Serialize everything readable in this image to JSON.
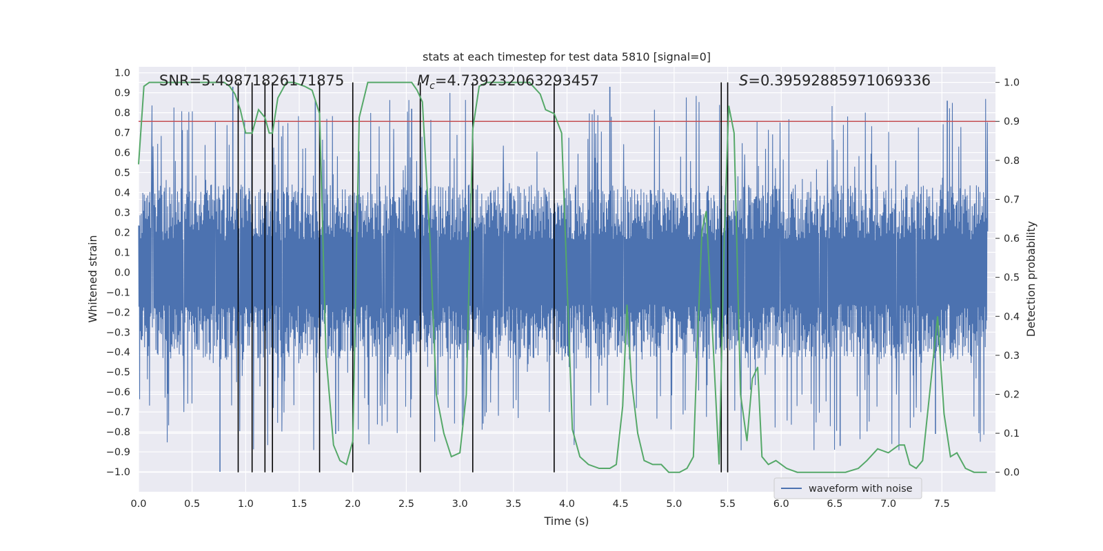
{
  "chart_data": {
    "type": "line",
    "title": "stats at each timestep for test data 5810 [signal=0]",
    "xlabel": "Time (s)",
    "ylabel": "Whitened strain",
    "ylabel_right": "Detection probability",
    "xlim": [
      0.0,
      8.0
    ],
    "ylim": [
      -1.1,
      1.03
    ],
    "ylim_right": [
      -0.05,
      1.04
    ],
    "x_ticks": [
      "0.0",
      "0.5",
      "1.0",
      "1.5",
      "2.0",
      "2.5",
      "3.0",
      "3.5",
      "4.0",
      "4.5",
      "5.0",
      "5.5",
      "6.0",
      "6.5",
      "7.0",
      "7.5"
    ],
    "y_ticks": [
      "−1.0",
      "−0.9",
      "−0.8",
      "−0.7",
      "−0.6",
      "−0.5",
      "−0.4",
      "−0.3",
      "−0.2",
      "−0.1",
      "0.0",
      "0.1",
      "0.2",
      "0.3",
      "0.4",
      "0.5",
      "0.6",
      "0.7",
      "0.8",
      "0.9",
      "1.0"
    ],
    "y_ticks_right": [
      "0.0",
      "0.1",
      "0.2",
      "0.3",
      "0.4",
      "0.5",
      "0.6",
      "0.7",
      "0.8",
      "0.9",
      "1.0"
    ],
    "annotations": {
      "snr": "SNR=5.49871826171875",
      "mc_symbol": "M",
      "mc_sub": "c",
      "mc_value": "=4.739232063293457",
      "s_symbol": "S",
      "s_value": "=0.39592885971069336"
    },
    "legend": [
      "waveform with noise"
    ],
    "threshold": {
      "value": 0.9,
      "axis": "right",
      "color": "#c44e52"
    },
    "vertical_lines": [
      0.93,
      1.06,
      1.18,
      1.25,
      1.69,
      2.0,
      2.63,
      3.12,
      3.88,
      5.44,
      5.5
    ],
    "series": [
      {
        "name": "waveform with noise",
        "color": "#4c72b0",
        "axis": "left",
        "kind": "noisy strain (approx. envelope ±0.4 body, peaks to ±1.0)",
        "peaks": [
          {
            "x": 0.76,
            "y": -1.0
          },
          {
            "x": 0.88,
            "y": 0.93
          },
          {
            "x": 1.84,
            "y": -0.81
          },
          {
            "x": 4.4,
            "y": 0.93
          },
          {
            "x": 6.55,
            "y": -0.87
          },
          {
            "x": 7.55,
            "y": 0.86
          },
          {
            "x": 7.44,
            "y": -0.81
          },
          {
            "x": 1.65,
            "y": 0.86
          },
          {
            "x": 2.55,
            "y": 0.82
          }
        ]
      },
      {
        "name": "detection probability",
        "color": "#55a868",
        "axis": "right",
        "x": [
          0.0,
          0.05,
          0.1,
          0.2,
          0.3,
          0.4,
          0.5,
          0.6,
          0.7,
          0.8,
          0.85,
          0.9,
          0.95,
          1.0,
          1.06,
          1.12,
          1.18,
          1.22,
          1.25,
          1.3,
          1.38,
          1.45,
          1.55,
          1.62,
          1.69,
          1.75,
          1.82,
          1.88,
          1.94,
          2.0,
          2.06,
          2.14,
          2.25,
          2.35,
          2.45,
          2.55,
          2.6,
          2.65,
          2.72,
          2.78,
          2.85,
          2.92,
          3.0,
          3.06,
          3.12,
          3.18,
          3.25,
          3.35,
          3.45,
          3.55,
          3.65,
          3.75,
          3.8,
          3.88,
          3.95,
          4.05,
          4.12,
          4.2,
          4.3,
          4.4,
          4.46,
          4.52,
          4.56,
          4.6,
          4.66,
          4.72,
          4.8,
          4.88,
          4.95,
          5.05,
          5.12,
          5.18,
          5.22,
          5.26,
          5.3,
          5.36,
          5.42,
          5.47,
          5.51,
          5.56,
          5.62,
          5.68,
          5.73,
          5.78,
          5.82,
          5.88,
          5.95,
          6.05,
          6.15,
          6.22,
          6.3,
          6.45,
          6.6,
          6.72,
          6.8,
          6.9,
          7.0,
          7.05,
          7.1,
          7.15,
          7.2,
          7.26,
          7.32,
          7.4,
          7.46,
          7.52,
          7.58,
          7.64,
          7.72,
          7.8,
          7.92
        ],
        "values": [
          0.79,
          0.99,
          1.0,
          1.0,
          1.0,
          1.0,
          1.0,
          1.0,
          1.0,
          1.0,
          0.99,
          0.97,
          0.93,
          0.87,
          0.87,
          0.93,
          0.91,
          0.87,
          0.87,
          0.96,
          1.0,
          1.0,
          0.99,
          0.98,
          0.92,
          0.3,
          0.07,
          0.03,
          0.02,
          0.08,
          0.91,
          1.0,
          1.0,
          1.0,
          1.0,
          1.0,
          0.98,
          0.95,
          0.6,
          0.2,
          0.1,
          0.04,
          0.05,
          0.2,
          0.88,
          0.99,
          1.0,
          1.0,
          1.0,
          1.0,
          1.0,
          0.97,
          0.93,
          0.92,
          0.87,
          0.11,
          0.04,
          0.02,
          0.01,
          0.01,
          0.02,
          0.17,
          0.43,
          0.24,
          0.1,
          0.03,
          0.02,
          0.02,
          0.0,
          0.0,
          0.01,
          0.04,
          0.35,
          0.62,
          0.67,
          0.35,
          0.02,
          0.62,
          0.94,
          0.87,
          0.2,
          0.08,
          0.24,
          0.27,
          0.04,
          0.02,
          0.03,
          0.01,
          0.0,
          0.0,
          0.0,
          0.0,
          0.0,
          0.01,
          0.03,
          0.06,
          0.05,
          0.06,
          0.07,
          0.07,
          0.02,
          0.01,
          0.03,
          0.24,
          0.4,
          0.15,
          0.04,
          0.05,
          0.01,
          0.0,
          0.0
        ]
      }
    ]
  }
}
